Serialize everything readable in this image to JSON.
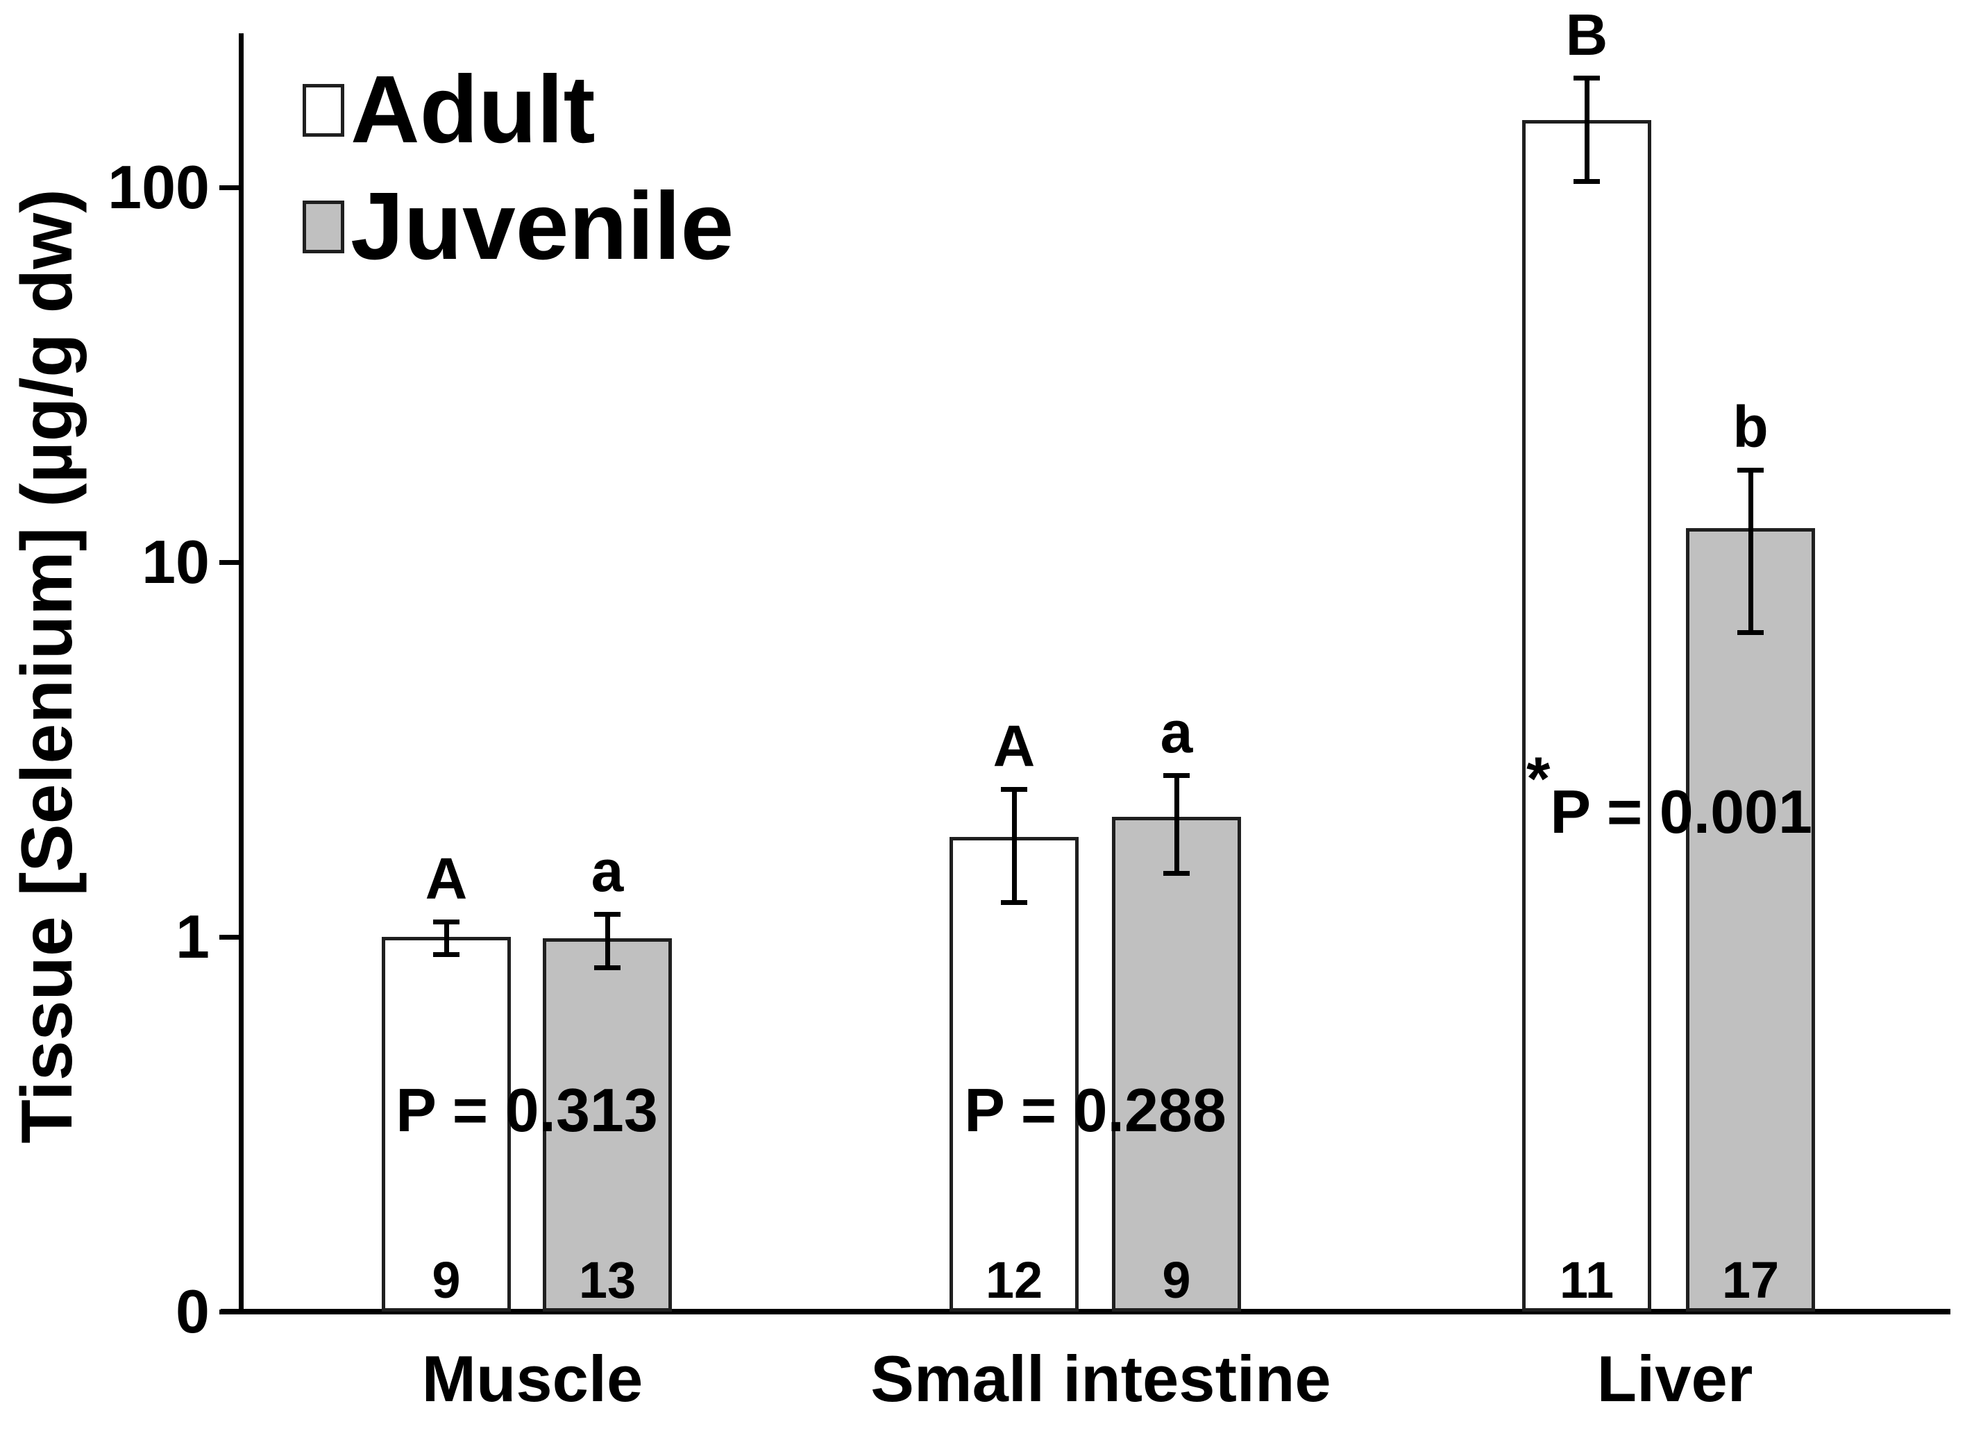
{
  "colors": {
    "background": "#ffffff",
    "adult_fill": "#ffffff",
    "juvenile_fill": "#c0c0c0",
    "bar_border": "#1f1f1f",
    "axis": "#000000",
    "text": "#000000"
  },
  "legend": {
    "position": "top-left",
    "items": [
      {
        "label": "Adult",
        "swatch": "open-square"
      },
      {
        "label": "Juvenile",
        "swatch": "gray-square"
      }
    ]
  },
  "chart_data": {
    "type": "bar",
    "title": "",
    "xlabel": "",
    "ylabel": "Tissue [Selenium] (µg/g dw)",
    "y_scale": "log",
    "grid": false,
    "y_axis": {
      "min": 0.1,
      "max": 280,
      "tick_values": [
        0.1,
        1,
        10,
        100
      ],
      "tick_labels": [
        "0",
        "1",
        "10",
        "100"
      ]
    },
    "categories": [
      "Muscle",
      "Small intestine",
      "Liver"
    ],
    "series": [
      {
        "name": "Adult",
        "values": [
          1.0,
          1.85,
          151
        ],
        "err_hi": [
          1.1,
          2.48,
          196
        ],
        "err_lo": [
          0.9,
          1.24,
          104
        ],
        "letters": [
          "A",
          "A",
          "B"
        ],
        "n": [
          9,
          12,
          11
        ]
      },
      {
        "name": "Juvenile",
        "values": [
          0.99,
          2.09,
          12.3
        ],
        "err_hi": [
          1.15,
          2.7,
          17.6
        ],
        "err_lo": [
          0.83,
          1.48,
          6.5
        ],
        "letters": [
          "a",
          "a",
          "b"
        ],
        "n": [
          13,
          9,
          17
        ]
      }
    ],
    "p_values": [
      {
        "label": "P = 0.313",
        "starred": false
      },
      {
        "label": "P = 0.288",
        "starred": false
      },
      {
        "label": "P = 0.001",
        "starred": true
      }
    ],
    "annotation_star": "*"
  }
}
